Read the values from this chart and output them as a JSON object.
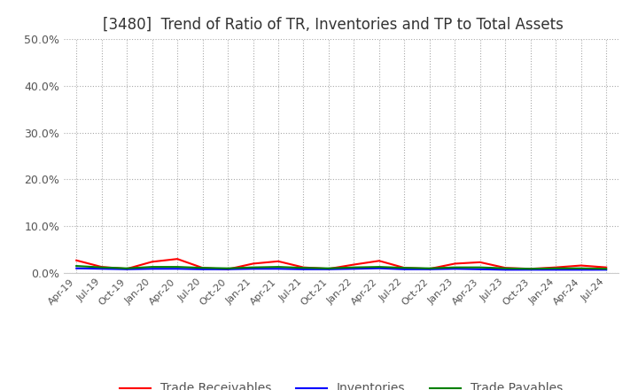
{
  "title": "[3480]  Trend of Ratio of TR, Inventories and TP to Total Assets",
  "title_fontsize": 12,
  "ylim": [
    0.0,
    0.5
  ],
  "yticks": [
    0.0,
    0.1,
    0.2,
    0.3,
    0.4,
    0.5
  ],
  "x_labels": [
    "Apr-19",
    "Jul-19",
    "Oct-19",
    "Jan-20",
    "Apr-20",
    "Jul-20",
    "Oct-20",
    "Jan-21",
    "Apr-21",
    "Jul-21",
    "Oct-21",
    "Jan-22",
    "Apr-22",
    "Jul-22",
    "Oct-22",
    "Jan-23",
    "Apr-23",
    "Jul-23",
    "Oct-23",
    "Jan-24",
    "Apr-24",
    "Jul-24"
  ],
  "trade_receivables": [
    0.027,
    0.013,
    0.009,
    0.024,
    0.03,
    0.011,
    0.008,
    0.02,
    0.025,
    0.012,
    0.009,
    0.018,
    0.026,
    0.011,
    0.009,
    0.02,
    0.023,
    0.011,
    0.009,
    0.012,
    0.016,
    0.012
  ],
  "inventories": [
    0.01,
    0.009,
    0.008,
    0.009,
    0.009,
    0.008,
    0.008,
    0.009,
    0.009,
    0.008,
    0.008,
    0.009,
    0.01,
    0.008,
    0.008,
    0.009,
    0.008,
    0.007,
    0.007,
    0.007,
    0.007,
    0.007
  ],
  "trade_payables": [
    0.015,
    0.012,
    0.01,
    0.013,
    0.013,
    0.011,
    0.01,
    0.012,
    0.013,
    0.011,
    0.01,
    0.012,
    0.013,
    0.011,
    0.01,
    0.012,
    0.012,
    0.01,
    0.009,
    0.01,
    0.01,
    0.009
  ],
  "tr_color": "#ff0000",
  "inv_color": "#0000ff",
  "tp_color": "#008000",
  "line_width": 1.5,
  "grid_color": "#aaaaaa",
  "background_color": "#ffffff",
  "title_color": "#333333",
  "tick_color": "#555555",
  "legend_labels": [
    "Trade Receivables",
    "Inventories",
    "Trade Payables"
  ]
}
